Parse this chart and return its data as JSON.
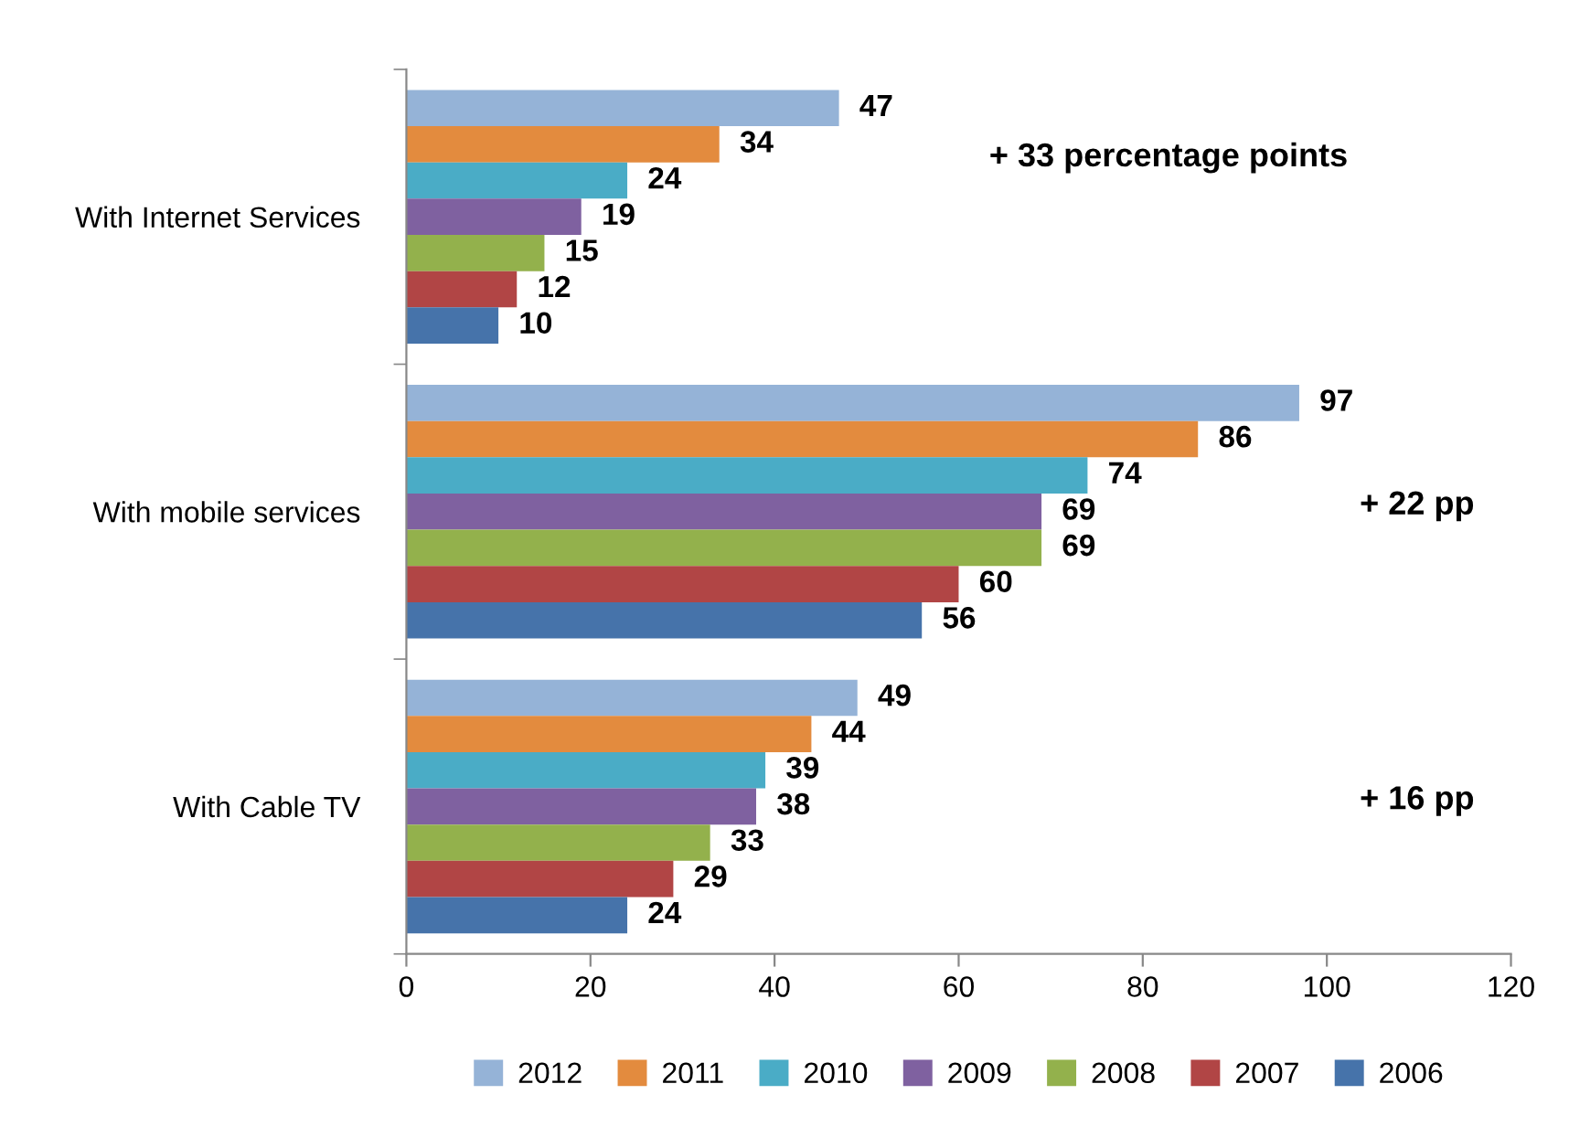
{
  "chart_data": {
    "type": "bar",
    "orientation": "horizontal",
    "categories": [
      "With Internet Services",
      "With mobile services",
      "With Cable TV"
    ],
    "series": [
      {
        "name": "2012",
        "color": "#95b3d7",
        "values": [
          47,
          97,
          49
        ]
      },
      {
        "name": "2011",
        "color": "#e38b3e",
        "values": [
          34,
          86,
          44
        ]
      },
      {
        "name": "2010",
        "color": "#4aacc6",
        "values": [
          24,
          74,
          39
        ]
      },
      {
        "name": "2009",
        "color": "#7f61a0",
        "values": [
          19,
          69,
          38
        ]
      },
      {
        "name": "2008",
        "color": "#93b14c",
        "values": [
          15,
          69,
          33
        ]
      },
      {
        "name": "2007",
        "color": "#b14545",
        "values": [
          12,
          60,
          29
        ]
      },
      {
        "name": "2006",
        "color": "#4673aa",
        "values": [
          10,
          56,
          24
        ]
      }
    ],
    "xlim": [
      0,
      120
    ],
    "xticks": [
      0,
      20,
      40,
      60,
      80,
      100,
      120
    ],
    "data_labels": true,
    "grid": false,
    "legend": "bottom",
    "annotations": [
      "+ 33 percentage points",
      "+ 22 pp",
      "+ 16 pp"
    ]
  }
}
